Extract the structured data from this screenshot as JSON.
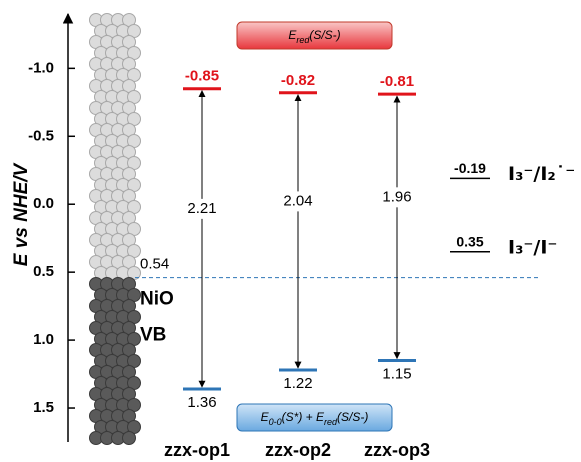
{
  "chart_data": {
    "type": "energy-levels",
    "ylabel": "E vs NHE/V",
    "ylim": [
      -1.4,
      1.75
    ],
    "inverted": true,
    "yticks": [
      {
        "value": -1.0,
        "label": "-1.0"
      },
      {
        "value": -0.5,
        "label": "-0.5"
      },
      {
        "value": 0.0,
        "label": "0.0"
      },
      {
        "value": 0.5,
        "label": "0.5"
      },
      {
        "value": 1.0,
        "label": "1.0"
      },
      {
        "value": 1.5,
        "label": "1.5"
      }
    ],
    "categories": [
      "zzx-op1",
      "zzx-op2",
      "zzx-op3"
    ],
    "lumo": {
      "color": "#e0141b",
      "values": [
        -0.85,
        -0.82,
        -0.81
      ]
    },
    "homo": {
      "color": "#2e75b6",
      "values": [
        1.36,
        1.22,
        1.15
      ]
    },
    "gaps": [
      2.21,
      2.04,
      1.96
    ],
    "nio_vb": {
      "value": 0.54,
      "labels": [
        "NiO",
        "VB"
      ]
    },
    "redox": [
      {
        "value": -0.19,
        "label": "I₃⁻/I₂˙⁻"
      },
      {
        "value": 0.35,
        "label": "I₃⁻/I⁻"
      }
    ],
    "lumo_box": [
      {
        "text": "E"
      },
      {
        "text": "red",
        "sub": true
      },
      {
        "text": "(S/S-)"
      }
    ],
    "homo_box": [
      {
        "text": "E"
      },
      {
        "text": "0-0",
        "sub": true
      },
      {
        "text": "(S*) + E"
      },
      {
        "text": "red",
        "sub": true
      },
      {
        "text": "(S/S-)"
      }
    ]
  }
}
